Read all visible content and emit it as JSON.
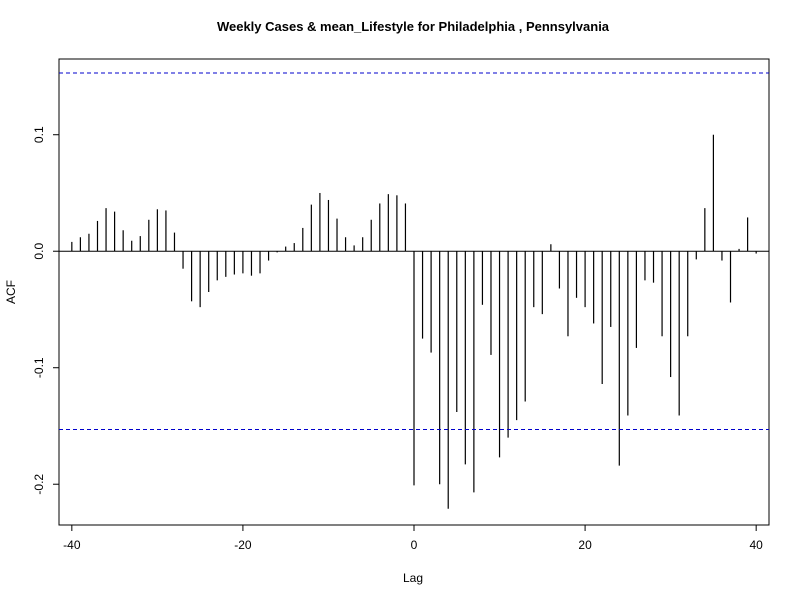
{
  "chart_data": {
    "type": "bar",
    "title": "Weekly Cases & mean_Lifestyle for Philadelphia , Pennsylvania",
    "xlabel": "Lag",
    "ylabel": "ACF",
    "xlim": [
      -41.5,
      41.5
    ],
    "ylim": [
      -0.235,
      0.165
    ],
    "x_ticks": [
      -40,
      -20,
      0,
      20,
      40
    ],
    "x_tick_labels": [
      "-40",
      "-20",
      "0",
      "20",
      "40"
    ],
    "y_ticks": [
      -0.2,
      -0.1,
      0.0,
      0.1
    ],
    "y_tick_labels": [
      "-0.2",
      "-0.1",
      "0.0",
      "0.1"
    ],
    "confidence_bounds": [
      0.153,
      -0.153
    ],
    "confidence_color": "#0000cc",
    "bar_color": "#000000",
    "grid": false,
    "lags": [
      -40,
      -39,
      -38,
      -37,
      -36,
      -35,
      -34,
      -33,
      -32,
      -31,
      -30,
      -29,
      -28,
      -27,
      -26,
      -25,
      -24,
      -23,
      -22,
      -21,
      -20,
      -19,
      -18,
      -17,
      -16,
      -15,
      -14,
      -13,
      -12,
      -11,
      -10,
      -9,
      -8,
      -7,
      -6,
      -5,
      -4,
      -3,
      -2,
      -1,
      0,
      1,
      2,
      3,
      4,
      5,
      6,
      7,
      8,
      9,
      10,
      11,
      12,
      13,
      14,
      15,
      16,
      17,
      18,
      19,
      20,
      21,
      22,
      23,
      24,
      25,
      26,
      27,
      28,
      29,
      30,
      31,
      32,
      33,
      34,
      35,
      36,
      37,
      38,
      39,
      40
    ],
    "values": [
      0.008,
      0.012,
      0.015,
      0.026,
      0.037,
      0.034,
      0.018,
      0.009,
      0.013,
      0.027,
      0.036,
      0.035,
      0.016,
      -0.015,
      -0.043,
      -0.048,
      -0.035,
      -0.025,
      -0.022,
      -0.02,
      -0.019,
      -0.021,
      -0.019,
      -0.008,
      -0.001,
      0.004,
      0.007,
      0.02,
      0.04,
      0.05,
      0.044,
      0.028,
      0.012,
      0.005,
      0.012,
      0.027,
      0.041,
      0.049,
      0.048,
      0.041,
      -0.201,
      -0.075,
      -0.087,
      -0.2,
      -0.221,
      -0.138,
      -0.183,
      -0.207,
      -0.046,
      -0.089,
      -0.177,
      -0.16,
      -0.145,
      -0.129,
      -0.048,
      -0.054,
      0.006,
      -0.032,
      -0.073,
      -0.04,
      -0.048,
      -0.062,
      -0.114,
      -0.065,
      -0.184,
      -0.141,
      -0.083,
      -0.025,
      -0.027,
      -0.073,
      -0.108,
      -0.141,
      -0.073,
      -0.007,
      0.037,
      0.1,
      -0.008,
      -0.044,
      0.002,
      0.029,
      -0.002
    ]
  }
}
